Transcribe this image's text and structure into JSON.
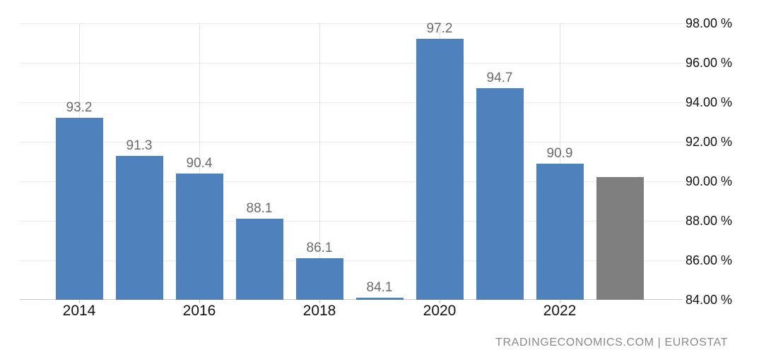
{
  "chart_data": {
    "type": "bar",
    "title": "",
    "xlabel": "",
    "ylabel": "",
    "ylim": [
      84,
      98
    ],
    "grid": true,
    "legend": "none",
    "y_axis": {
      "side": "right",
      "ticks": [
        98,
        96,
        94,
        92,
        90,
        88,
        86,
        84
      ],
      "tick_labels": [
        "98.00 %",
        "96.00 %",
        "94.00 %",
        "92.00 %",
        "90.00 %",
        "88.00 %",
        "86.00 %",
        "84.00 %"
      ]
    },
    "x_axis": {
      "tick_labels": [
        "2014",
        "2016",
        "2018",
        "2020",
        "2022"
      ],
      "tick_bar_indexes": [
        0,
        2,
        4,
        6,
        8
      ]
    },
    "bars": [
      {
        "value": 93.2,
        "data_label": "93.2",
        "series": "actual"
      },
      {
        "value": 91.3,
        "data_label": "91.3",
        "series": "actual"
      },
      {
        "value": 90.4,
        "data_label": "90.4",
        "series": "actual"
      },
      {
        "value": 88.1,
        "data_label": "88.1",
        "series": "actual"
      },
      {
        "value": 86.1,
        "data_label": "86.1",
        "series": "actual"
      },
      {
        "value": 84.1,
        "data_label": "84.1",
        "series": "actual"
      },
      {
        "value": 97.2,
        "data_label": "97.2",
        "series": "actual"
      },
      {
        "value": 94.7,
        "data_label": "94.7",
        "series": "actual"
      },
      {
        "value": 90.9,
        "data_label": "90.9",
        "series": "actual"
      },
      {
        "value": 90.2,
        "data_label": "",
        "series": "estimate"
      }
    ],
    "colors": {
      "actual": "#4f81bd",
      "estimate": "#7f7f7f",
      "background": "#ffffff"
    }
  },
  "attribution": {
    "text": "TRADINGECONOMICS.COM | EUROSTAT"
  }
}
